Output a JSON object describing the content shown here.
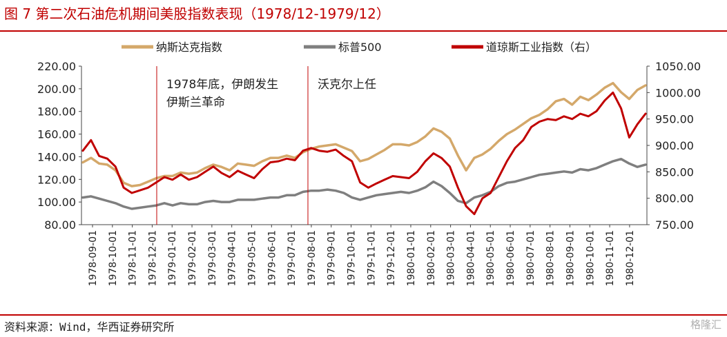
{
  "title": "图 7  第二次石油危机期间美股指数表现（1978/12-1979/12）",
  "source": "资料来源：Wind，华西证券研究所",
  "logo": "格隆汇",
  "colors": {
    "nasdaq": "#d4a86a",
    "sp500": "#7f7f7f",
    "dow": "#c00000",
    "marker": "#c00000",
    "accent": "#c00000"
  },
  "chart_data": {
    "type": "line",
    "legend_position": "top",
    "x_tick_labels": [
      "1978-09-01",
      "1978-10-01",
      "1978-11-01",
      "1978-12-01",
      "1979-01-01",
      "1979-02-01",
      "1979-03-01",
      "1979-04-01",
      "1979-05-01",
      "1979-06-01",
      "1979-07-01",
      "1979-08-01",
      "1979-09-01",
      "1979-10-01",
      "1979-11-01",
      "1979-12-01",
      "1980-01-01",
      "1980-02-01",
      "1980-03-01",
      "1980-04-01",
      "1980-05-01",
      "1980-06-01",
      "1980-07-01",
      "1980-08-01",
      "1980-09-01",
      "1980-10-01",
      "1980-11-01",
      "1980-12-01"
    ],
    "y_left": {
      "ticks": [
        "80.00",
        "100.00",
        "120.00",
        "140.00",
        "160.00",
        "180.00",
        "200.00",
        "220.00"
      ],
      "min": 80,
      "max": 220
    },
    "y_right": {
      "ticks": [
        "750.00",
        "800.00",
        "850.00",
        "900.00",
        "950.00",
        "1000.00",
        "1050.00"
      ],
      "min": 750,
      "max": 1050
    },
    "series": [
      {
        "name": "纳斯达克指数",
        "axis": "left",
        "key": "nasdaq",
        "values": [
          135,
          139,
          134,
          133,
          128,
          117,
          114,
          115,
          118,
          121,
          123,
          123,
          126,
          125,
          126,
          130,
          133,
          131,
          128,
          134,
          133,
          132,
          136,
          139,
          139,
          141,
          139,
          144,
          147,
          149,
          150,
          151,
          148,
          145,
          136,
          138,
          142,
          146,
          151,
          151,
          150,
          153,
          158,
          165,
          162,
          156,
          141,
          128,
          139,
          142,
          147,
          154,
          160,
          164,
          169,
          174,
          177,
          182,
          189,
          191,
          186,
          193,
          190,
          195,
          201,
          205,
          197,
          191,
          199,
          203
        ]
      },
      {
        "name": "标普500",
        "axis": "left",
        "key": "sp500",
        "values": [
          104,
          105,
          103,
          101,
          99,
          96,
          94,
          95,
          96,
          97,
          99,
          97,
          99,
          98,
          98,
          100,
          101,
          100,
          100,
          102,
          102,
          102,
          103,
          104,
          104,
          106,
          106,
          109,
          110,
          110,
          111,
          110,
          108,
          104,
          102,
          104,
          106,
          107,
          108,
          109,
          108,
          110,
          113,
          118,
          114,
          108,
          101,
          99,
          104,
          106,
          109,
          114,
          117,
          118,
          120,
          122,
          124,
          125,
          126,
          127,
          126,
          129,
          128,
          130,
          133,
          136,
          138,
          134,
          131,
          133
        ]
      },
      {
        "name": "道琼斯工业指数（右）",
        "axis": "right",
        "key": "dow",
        "values": [
          890,
          910,
          880,
          875,
          860,
          820,
          810,
          815,
          820,
          830,
          840,
          835,
          845,
          835,
          840,
          850,
          860,
          848,
          840,
          852,
          845,
          838,
          855,
          868,
          870,
          875,
          872,
          890,
          895,
          890,
          888,
          892,
          880,
          870,
          830,
          820,
          828,
          835,
          842,
          840,
          838,
          850,
          870,
          885,
          876,
          860,
          820,
          785,
          770,
          800,
          810,
          840,
          870,
          895,
          910,
          935,
          945,
          950,
          948,
          955,
          950,
          960,
          955,
          965,
          985,
          1000,
          970,
          915,
          940,
          960
        ]
      }
    ]
  },
  "annotations": [
    {
      "lines": [
        "1978年底，伊朗发生",
        "伊斯兰革命"
      ]
    },
    {
      "lines": [
        "沃克尔上任"
      ]
    }
  ]
}
